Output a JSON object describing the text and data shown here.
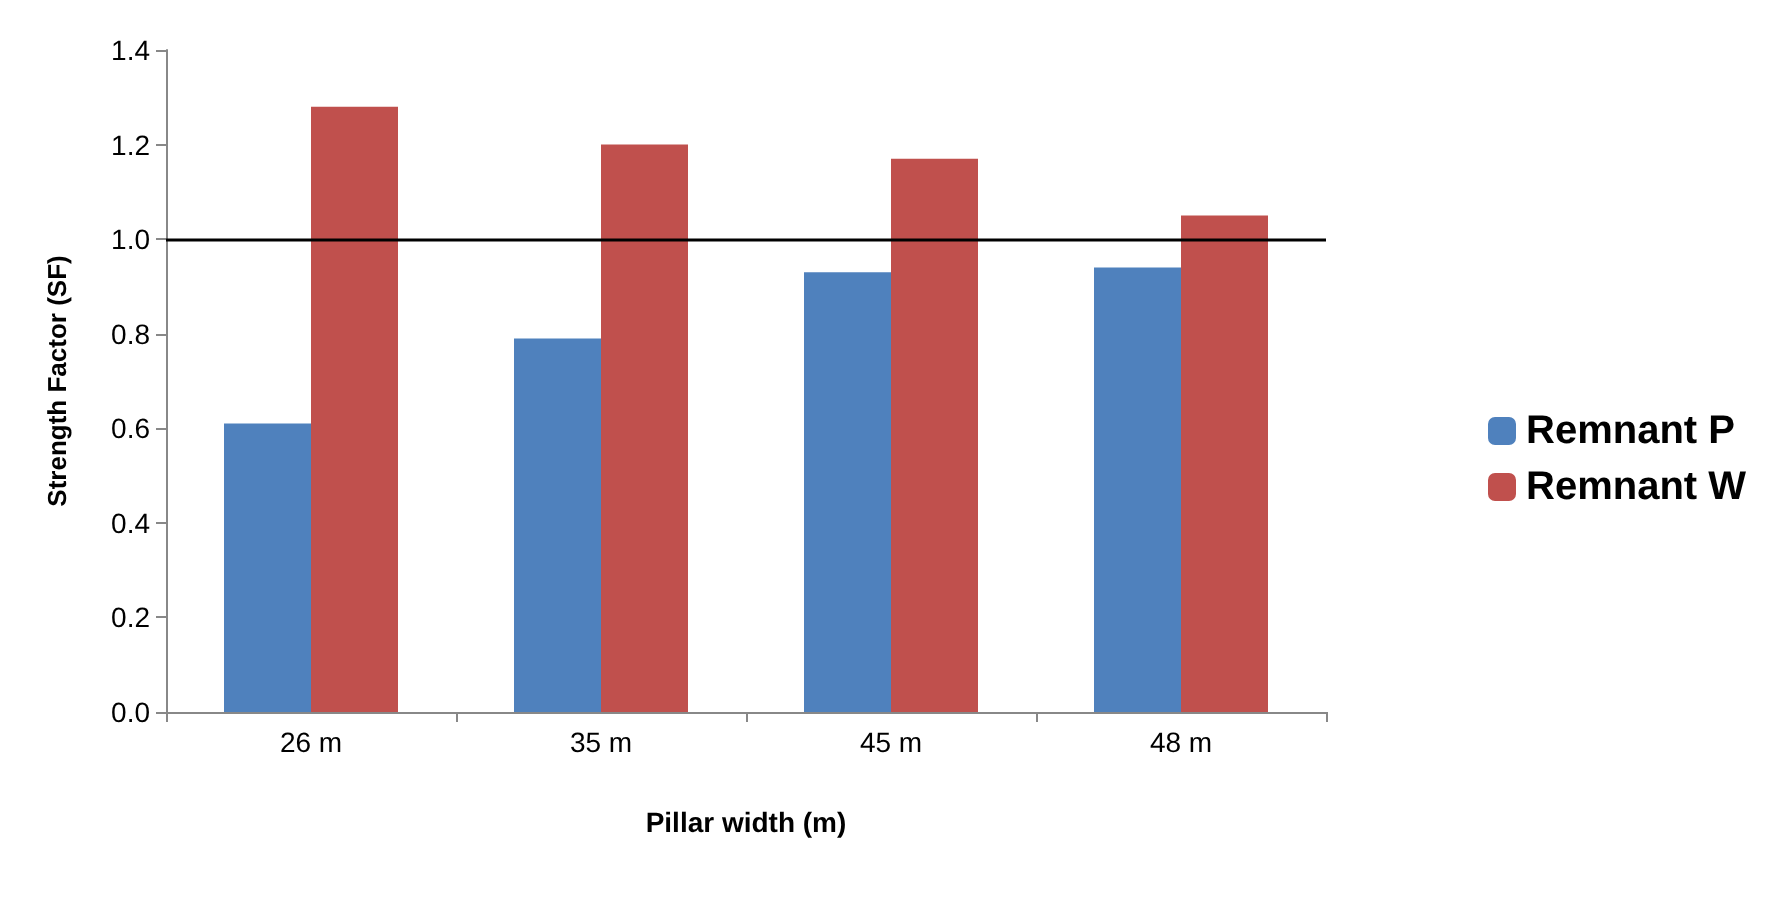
{
  "chart_data": {
    "type": "bar",
    "xlabel": "Pillar width (m)",
    "ylabel": "Strength Factor (SF)",
    "categories": [
      "26 m",
      "35 m",
      "45 m",
      "48 m"
    ],
    "series": [
      {
        "name": "Remnant P",
        "color": "#4f81bd",
        "values": [
          0.61,
          0.79,
          0.93,
          0.94
        ]
      },
      {
        "name": "Remnant W",
        "color": "#c0504d",
        "values": [
          1.28,
          1.2,
          1.17,
          1.05
        ]
      }
    ],
    "ylim": [
      0,
      1.4
    ],
    "yticks": [
      {
        "value": 0,
        "label": "0.0"
      },
      {
        "value": 0.2,
        "label": "0.2"
      },
      {
        "value": 0.4,
        "label": "0.4"
      },
      {
        "value": 0.6,
        "label": "0.6"
      },
      {
        "value": 0.8,
        "label": "0.8"
      },
      {
        "value": 1,
        "label": "1.0"
      },
      {
        "value": 1.2,
        "label": "1.2"
      },
      {
        "value": 1.4,
        "label": "1.4"
      }
    ],
    "ref_lines": [
      {
        "axis": "y",
        "value": 1.0,
        "color": "#000000"
      }
    ],
    "grid": false,
    "legend": "right"
  }
}
